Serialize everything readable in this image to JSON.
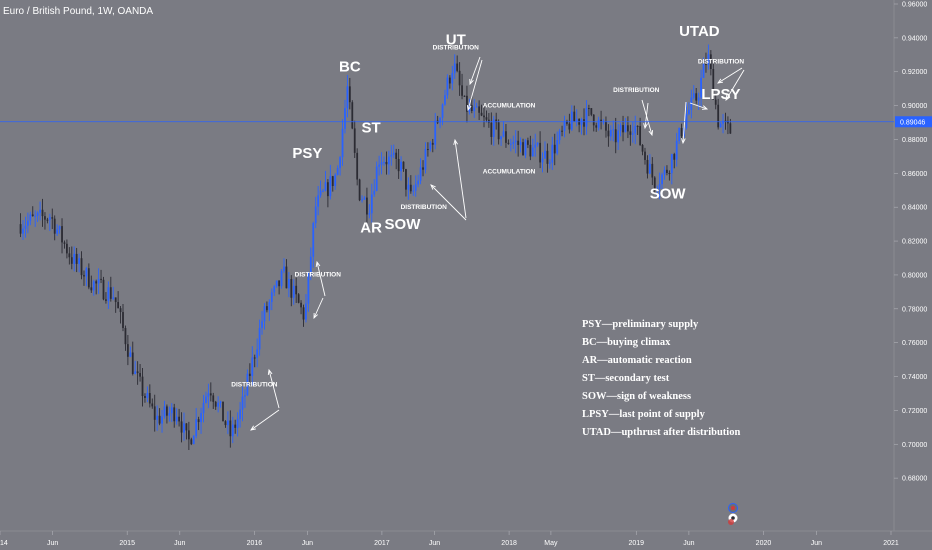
{
  "header": {
    "title": "Euro / British Pound, 1W, OANDA"
  },
  "colors": {
    "background": "#7a7b83",
    "up_candle": "#2962ff",
    "down_candle": "#2b2b33",
    "current_price_line": "#2962ff",
    "text": "#ffffff"
  },
  "current_price": {
    "value": 0.89046,
    "label": "0.89046"
  },
  "chart_data": {
    "type": "candlestick",
    "symbol": "EUR/GBP",
    "interval": "1W",
    "exchange": "OANDA",
    "ylim": [
      0.66,
      0.96
    ],
    "y_ticks": [
      "0.96000",
      "0.94000",
      "0.92000",
      "0.90000",
      "0.88000",
      "0.86000",
      "0.84000",
      "0.82000",
      "0.80000",
      "0.78000",
      "0.76000",
      "0.74000",
      "0.72000",
      "0.70000",
      "0.68000"
    ],
    "x_ticks": [
      "14",
      "Jun",
      "2015",
      "Jun",
      "2016",
      "Jun",
      "2017",
      "Jun",
      "2018",
      "May",
      "2019",
      "Jun",
      "2020",
      "Jun",
      "2021"
    ],
    "price_path": [
      {
        "date": "2014-03",
        "price": 0.83
      },
      {
        "date": "2014-06",
        "price": 0.835
      },
      {
        "date": "2014-08",
        "price": 0.81
      },
      {
        "date": "2014-10",
        "price": 0.795
      },
      {
        "date": "2014-12",
        "price": 0.788
      },
      {
        "date": "2015-02",
        "price": 0.74
      },
      {
        "date": "2015-04",
        "price": 0.715
      },
      {
        "date": "2015-06",
        "price": 0.72
      },
      {
        "date": "2015-07",
        "price": 0.7
      },
      {
        "date": "2015-09",
        "price": 0.735
      },
      {
        "date": "2015-11",
        "price": 0.705
      },
      {
        "date": "2015-12",
        "price": 0.72
      },
      {
        "date": "2016-02",
        "price": 0.775
      },
      {
        "date": "2016-04",
        "price": 0.8
      },
      {
        "date": "2016-06",
        "price": 0.775
      },
      {
        "date": "2016-07",
        "price": 0.84
      },
      {
        "date": "2016-09",
        "price": 0.86
      },
      {
        "date": "2016-10",
        "price": 0.91
      },
      {
        "date": "2016-11",
        "price": 0.85
      },
      {
        "date": "2016-12",
        "price": 0.84
      },
      {
        "date": "2017-01",
        "price": 0.87
      },
      {
        "date": "2017-03",
        "price": 0.865
      },
      {
        "date": "2017-04",
        "price": 0.845
      },
      {
        "date": "2017-06",
        "price": 0.88
      },
      {
        "date": "2017-08",
        "price": 0.925
      },
      {
        "date": "2017-09",
        "price": 0.9
      },
      {
        "date": "2017-11",
        "price": 0.89
      },
      {
        "date": "2018-01",
        "price": 0.88
      },
      {
        "date": "2018-03",
        "price": 0.875
      },
      {
        "date": "2018-05",
        "price": 0.87
      },
      {
        "date": "2018-07",
        "price": 0.89
      },
      {
        "date": "2018-09",
        "price": 0.895
      },
      {
        "date": "2018-11",
        "price": 0.88
      },
      {
        "date": "2019-01",
        "price": 0.89
      },
      {
        "date": "2019-02",
        "price": 0.87
      },
      {
        "date": "2019-03",
        "price": 0.855
      },
      {
        "date": "2019-04",
        "price": 0.86
      },
      {
        "date": "2019-05",
        "price": 0.875
      },
      {
        "date": "2019-06",
        "price": 0.895
      },
      {
        "date": "2019-07",
        "price": 0.905
      },
      {
        "date": "2019-08",
        "price": 0.93
      },
      {
        "date": "2019-09",
        "price": 0.89
      },
      {
        "date": "2019-10",
        "price": 0.885
      }
    ],
    "annotations": [
      {
        "text": "PSY",
        "size": "large",
        "date": "2016-06",
        "price": 0.869
      },
      {
        "text": "BC",
        "size": "large",
        "date": "2016-10",
        "price": 0.92
      },
      {
        "text": "ST",
        "size": "large",
        "date": "2016-12",
        "price": 0.884
      },
      {
        "text": "AR",
        "size": "large",
        "date": "2016-12",
        "price": 0.825
      },
      {
        "text": "SOW",
        "size": "large",
        "date": "2017-03",
        "price": 0.827
      },
      {
        "text": "UT",
        "size": "large",
        "date": "2017-08",
        "price": 0.936
      },
      {
        "text": "UTAD",
        "size": "large",
        "date": "2019-07",
        "price": 0.941
      },
      {
        "text": "LPSY",
        "size": "large",
        "date": "2019-09",
        "price": 0.904
      },
      {
        "text": "SOW",
        "size": "large",
        "date": "2019-04",
        "price": 0.845
      },
      {
        "text": "DISTRIBUTION",
        "size": "small",
        "date": "2017-08",
        "price": 0.933
      },
      {
        "text": "DISTRIBUTION",
        "size": "small",
        "date": "2017-05",
        "price": 0.839
      },
      {
        "text": "DISTRIBUTION",
        "size": "small",
        "date": "2016-07",
        "price": 0.799
      },
      {
        "text": "DISTRIBUTION",
        "size": "small",
        "date": "2016-01",
        "price": 0.734
      },
      {
        "text": "DISTRIBUTION",
        "size": "small",
        "date": "2019-01",
        "price": 0.908
      },
      {
        "text": "DISTRIBUTION",
        "size": "small",
        "date": "2019-09",
        "price": 0.925
      },
      {
        "text": "ACCUMULATION",
        "size": "small",
        "date": "2018-01",
        "price": 0.899
      },
      {
        "text": "ACCUMULATION",
        "size": "small",
        "date": "2018-01",
        "price": 0.86
      }
    ],
    "legend_lines": [
      "PSY—preliminary supply",
      "BC—buying climax",
      "AR—automatic reaction",
      "ST—secondary test",
      "SOW—sign of weakness",
      "LPSY—last point of supply",
      "UTAD—upthrust after distribution"
    ]
  }
}
